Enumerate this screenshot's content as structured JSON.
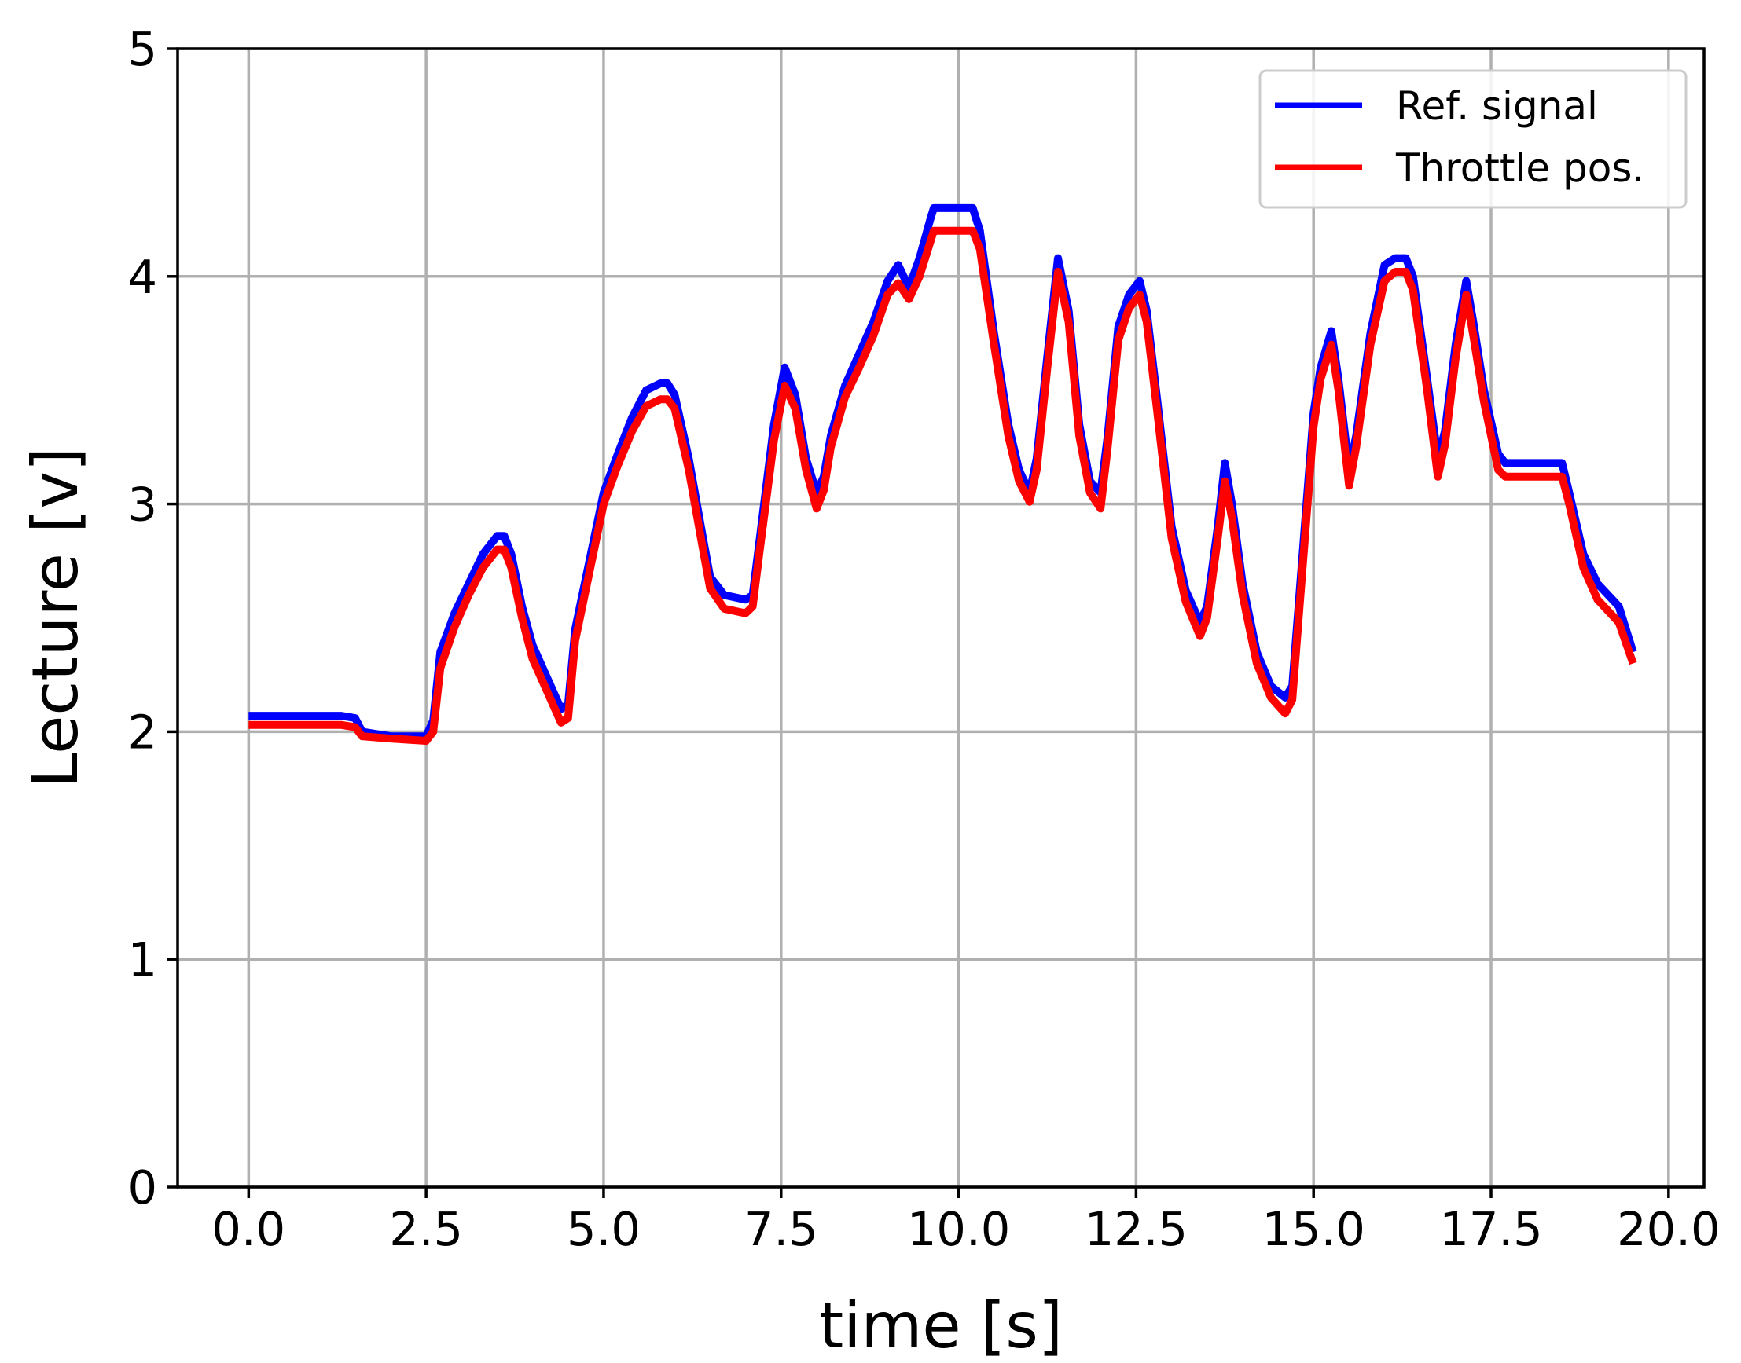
{
  "chart_data": {
    "type": "line",
    "title": "",
    "xlabel": "time [s]",
    "ylabel": "Lecture [v]",
    "xlim": [
      -1.0,
      20.5
    ],
    "ylim": [
      0,
      5
    ],
    "xticks": [
      "0.0",
      "2.5",
      "5.0",
      "7.5",
      "10.0",
      "12.5",
      "15.0",
      "17.5",
      "20.0"
    ],
    "xtick_values": [
      0,
      2.5,
      5,
      7.5,
      10,
      12.5,
      15,
      17.5,
      20
    ],
    "yticks": [
      "0",
      "1",
      "2",
      "3",
      "4",
      "5"
    ],
    "ytick_values": [
      0,
      1,
      2,
      3,
      4,
      5
    ],
    "grid": true,
    "legend_position": "top-right",
    "series": [
      {
        "name": "Ref. signal",
        "color": "#0000ff",
        "x": [
          0,
          0.5,
          1.0,
          1.3,
          1.5,
          1.6,
          2.0,
          2.5,
          2.6,
          2.7,
          2.9,
          3.1,
          3.3,
          3.5,
          3.6,
          3.7,
          3.85,
          4.0,
          4.2,
          4.4,
          4.5,
          4.6,
          4.8,
          5.0,
          5.2,
          5.4,
          5.6,
          5.8,
          5.9,
          6.0,
          6.2,
          6.4,
          6.5,
          6.7,
          7.0,
          7.1,
          7.2,
          7.4,
          7.55,
          7.7,
          7.85,
          8.0,
          8.1,
          8.2,
          8.4,
          8.6,
          8.8,
          9.0,
          9.15,
          9.3,
          9.45,
          9.6,
          9.65,
          9.8,
          10.2,
          10.3,
          10.5,
          10.7,
          10.85,
          11.0,
          11.1,
          11.25,
          11.4,
          11.55,
          11.7,
          11.85,
          12.0,
          12.1,
          12.25,
          12.4,
          12.55,
          12.65,
          12.8,
          13.0,
          13.2,
          13.4,
          13.5,
          13.65,
          13.75,
          13.85,
          14.0,
          14.2,
          14.4,
          14.6,
          14.7,
          14.85,
          15.0,
          15.1,
          15.25,
          15.35,
          15.5,
          15.6,
          15.8,
          16.0,
          16.15,
          16.3,
          16.4,
          16.6,
          16.75,
          16.85,
          17.0,
          17.15,
          17.25,
          17.4,
          17.6,
          17.7,
          17.9,
          18.5,
          18.6,
          18.8,
          19.0,
          19.3,
          19.5
        ],
        "values": [
          2.07,
          2.07,
          2.07,
          2.07,
          2.06,
          2.0,
          1.98,
          1.98,
          2.05,
          2.35,
          2.52,
          2.65,
          2.78,
          2.86,
          2.86,
          2.78,
          2.55,
          2.38,
          2.24,
          2.1,
          2.12,
          2.45,
          2.75,
          3.05,
          3.22,
          3.38,
          3.5,
          3.53,
          3.53,
          3.48,
          3.2,
          2.85,
          2.68,
          2.6,
          2.58,
          2.6,
          2.85,
          3.35,
          3.6,
          3.48,
          3.2,
          3.05,
          3.12,
          3.3,
          3.52,
          3.66,
          3.8,
          3.98,
          4.05,
          3.95,
          4.08,
          4.25,
          4.3,
          4.3,
          4.3,
          4.2,
          3.75,
          3.35,
          3.15,
          3.05,
          3.2,
          3.65,
          4.08,
          3.85,
          3.35,
          3.1,
          3.05,
          3.3,
          3.78,
          3.92,
          3.98,
          3.85,
          3.45,
          2.9,
          2.62,
          2.48,
          2.55,
          2.9,
          3.18,
          3.0,
          2.65,
          2.35,
          2.2,
          2.15,
          2.2,
          2.8,
          3.4,
          3.6,
          3.76,
          3.55,
          3.15,
          3.3,
          3.75,
          4.05,
          4.08,
          4.08,
          4.0,
          3.55,
          3.2,
          3.32,
          3.7,
          3.98,
          3.8,
          3.5,
          3.22,
          3.18,
          3.18,
          3.18,
          3.05,
          2.78,
          2.65,
          2.55,
          2.35
        ]
      },
      {
        "name": "Throttle pos.",
        "color": "#ff0000",
        "x": [
          0,
          0.5,
          1.0,
          1.3,
          1.5,
          1.6,
          2.0,
          2.5,
          2.6,
          2.7,
          2.9,
          3.1,
          3.3,
          3.5,
          3.6,
          3.7,
          3.85,
          4.0,
          4.2,
          4.4,
          4.5,
          4.6,
          4.8,
          5.0,
          5.2,
          5.4,
          5.6,
          5.8,
          5.9,
          6.0,
          6.2,
          6.4,
          6.5,
          6.7,
          7.0,
          7.1,
          7.2,
          7.4,
          7.55,
          7.7,
          7.85,
          8.0,
          8.1,
          8.2,
          8.4,
          8.6,
          8.8,
          9.0,
          9.15,
          9.3,
          9.45,
          9.6,
          9.65,
          9.8,
          10.2,
          10.3,
          10.5,
          10.7,
          10.85,
          11.0,
          11.1,
          11.25,
          11.4,
          11.55,
          11.7,
          11.85,
          12.0,
          12.1,
          12.25,
          12.4,
          12.55,
          12.65,
          12.8,
          13.0,
          13.2,
          13.4,
          13.5,
          13.65,
          13.75,
          13.85,
          14.0,
          14.2,
          14.4,
          14.6,
          14.7,
          14.85,
          15.0,
          15.1,
          15.25,
          15.35,
          15.5,
          15.6,
          15.8,
          16.0,
          16.15,
          16.3,
          16.4,
          16.6,
          16.75,
          16.85,
          17.0,
          17.15,
          17.25,
          17.4,
          17.6,
          17.7,
          17.9,
          18.5,
          18.6,
          18.8,
          19.0,
          19.3,
          19.5
        ],
        "values": [
          2.03,
          2.03,
          2.03,
          2.03,
          2.02,
          1.98,
          1.97,
          1.96,
          2.0,
          2.28,
          2.46,
          2.6,
          2.72,
          2.8,
          2.8,
          2.72,
          2.5,
          2.32,
          2.18,
          2.04,
          2.06,
          2.4,
          2.7,
          3.0,
          3.17,
          3.32,
          3.43,
          3.46,
          3.46,
          3.42,
          3.15,
          2.8,
          2.63,
          2.54,
          2.52,
          2.55,
          2.8,
          3.28,
          3.52,
          3.42,
          3.15,
          2.98,
          3.06,
          3.25,
          3.47,
          3.6,
          3.74,
          3.92,
          3.97,
          3.9,
          4.0,
          4.15,
          4.2,
          4.2,
          4.2,
          4.12,
          3.7,
          3.3,
          3.1,
          3.01,
          3.15,
          3.6,
          4.02,
          3.8,
          3.3,
          3.05,
          2.98,
          3.25,
          3.72,
          3.86,
          3.92,
          3.8,
          3.4,
          2.85,
          2.57,
          2.42,
          2.5,
          2.85,
          3.1,
          2.94,
          2.6,
          2.3,
          2.15,
          2.08,
          2.14,
          2.74,
          3.34,
          3.55,
          3.7,
          3.5,
          3.08,
          3.25,
          3.7,
          3.98,
          4.02,
          4.02,
          3.94,
          3.5,
          3.12,
          3.26,
          3.64,
          3.92,
          3.74,
          3.45,
          3.15,
          3.12,
          3.12,
          3.12,
          3.0,
          2.72,
          2.58,
          2.48,
          2.3
        ]
      }
    ]
  }
}
